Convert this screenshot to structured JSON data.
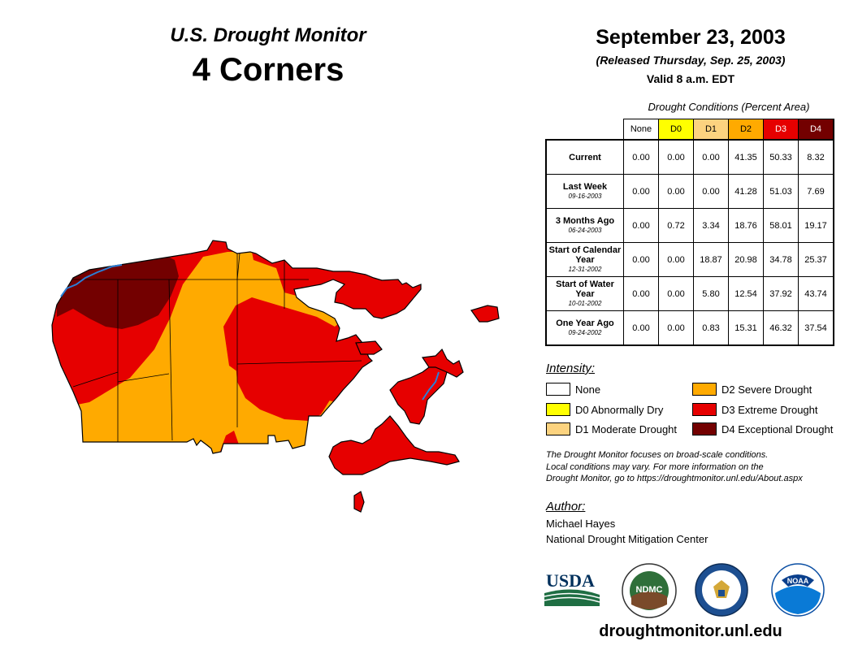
{
  "header": {
    "subtitle": "U.S. Drought Monitor",
    "region": "4 Corners",
    "date": "September 23, 2003",
    "released": "(Released Thursday, Sep. 25, 2003)",
    "valid": "Valid 8 a.m. EDT"
  },
  "table": {
    "caption": "Drought Conditions (Percent Area)",
    "columns": [
      {
        "label": "None",
        "color": "#ffffff",
        "text_color": "#000000"
      },
      {
        "label": "D0",
        "color": "#ffff00",
        "text_color": "#000000"
      },
      {
        "label": "D1",
        "color": "#fcd37f",
        "text_color": "#000000"
      },
      {
        "label": "D2",
        "color": "#ffaa00",
        "text_color": "#000000"
      },
      {
        "label": "D3",
        "color": "#e60000",
        "text_color": "#ffffff"
      },
      {
        "label": "D4",
        "color": "#730000",
        "text_color": "#ffffff"
      }
    ],
    "rows": [
      {
        "label": "Current",
        "date": "",
        "values": [
          "0.00",
          "0.00",
          "0.00",
          "41.35",
          "50.33",
          "8.32"
        ]
      },
      {
        "label": "Last Week",
        "date": "09-16-2003",
        "values": [
          "0.00",
          "0.00",
          "0.00",
          "41.28",
          "51.03",
          "7.69"
        ]
      },
      {
        "label": "3 Months Ago",
        "date": "06-24-2003",
        "values": [
          "0.00",
          "0.72",
          "3.34",
          "18.76",
          "58.01",
          "19.17"
        ]
      },
      {
        "label": "Start of Calendar Year",
        "date": "12-31-2002",
        "values": [
          "0.00",
          "0.00",
          "18.87",
          "20.98",
          "34.78",
          "25.37"
        ]
      },
      {
        "label": "Start of Water Year",
        "date": "10-01-2002",
        "values": [
          "0.00",
          "0.00",
          "5.80",
          "12.54",
          "37.92",
          "43.74"
        ]
      },
      {
        "label": "One Year Ago",
        "date": "09-24-2002",
        "values": [
          "0.00",
          "0.00",
          "0.83",
          "15.31",
          "46.32",
          "37.54"
        ]
      }
    ]
  },
  "legend": {
    "title": "Intensity:",
    "items": [
      {
        "label": "None",
        "color": "#ffffff"
      },
      {
        "label": "D0 Abnormally Dry",
        "color": "#ffff00"
      },
      {
        "label": "D1 Moderate Drought",
        "color": "#fcd37f"
      },
      {
        "label": "D2 Severe Drought",
        "color": "#ffaa00"
      },
      {
        "label": "D3 Extreme Drought",
        "color": "#e60000"
      },
      {
        "label": "D4 Exceptional Drought",
        "color": "#730000"
      }
    ]
  },
  "note": {
    "line1": "The Drought Monitor focuses on broad-scale conditions.",
    "line2": "Local conditions may vary. For more information on the",
    "line3": "Drought Monitor, go to https://droughtmonitor.unl.edu/About.aspx"
  },
  "author": {
    "title": "Author:",
    "name": "Michael Hayes",
    "org": "National Drought Mitigation Center"
  },
  "logos": {
    "usda": "USDA",
    "ndmc": "NDMC",
    "noaa": "NOAA"
  },
  "website": "droughtmonitor.unl.edu"
}
